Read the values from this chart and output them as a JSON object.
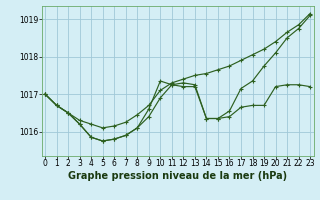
{
  "title": "Graphe pression niveau de la mer (hPa)",
  "background_color": "#d4eef5",
  "grid_color": "#a0c8d8",
  "line_color": "#2d6020",
  "marker_color": "#2d6020",
  "ylim": [
    1015.35,
    1019.35
  ],
  "yticks": [
    1016,
    1017,
    1018,
    1019
  ],
  "xlim": [
    -0.3,
    23.3
  ],
  "xticks": [
    0,
    1,
    2,
    3,
    4,
    5,
    6,
    7,
    8,
    9,
    10,
    11,
    12,
    13,
    14,
    15,
    16,
    17,
    18,
    19,
    20,
    21,
    22,
    23
  ],
  "series1_x": [
    0,
    1,
    2,
    3,
    4,
    5,
    6,
    7,
    8,
    9,
    10,
    11,
    12,
    13,
    14,
    15,
    16,
    17,
    18,
    19,
    20,
    21,
    22,
    23
  ],
  "series1_y": [
    1017.0,
    1016.7,
    1016.5,
    1016.2,
    1015.85,
    1015.75,
    1015.8,
    1015.9,
    1016.1,
    1016.4,
    1016.9,
    1017.25,
    1017.2,
    1017.2,
    1016.35,
    1016.35,
    1016.4,
    1016.65,
    1016.7,
    1016.7,
    1017.2,
    1017.25,
    1017.25,
    1017.2
  ],
  "series2_x": [
    0,
    1,
    2,
    3,
    4,
    5,
    6,
    7,
    8,
    9,
    10,
    11,
    12,
    13,
    14,
    15,
    16,
    17,
    18,
    19,
    20,
    21,
    22,
    23
  ],
  "series2_y": [
    1017.0,
    1016.7,
    1016.5,
    1016.2,
    1015.85,
    1015.75,
    1015.8,
    1015.9,
    1016.1,
    1016.6,
    1017.35,
    1017.25,
    1017.3,
    1017.25,
    1016.35,
    1016.35,
    1016.55,
    1017.15,
    1017.35,
    1017.75,
    1018.1,
    1018.5,
    1018.75,
    1019.1
  ],
  "series3_x": [
    0,
    1,
    2,
    3,
    4,
    5,
    6,
    7,
    8,
    9,
    10,
    11,
    12,
    13,
    14,
    15,
    16,
    17,
    18,
    19,
    20,
    21,
    22,
    23
  ],
  "series3_y": [
    1017.0,
    1016.7,
    1016.5,
    1016.3,
    1016.2,
    1016.1,
    1016.15,
    1016.25,
    1016.45,
    1016.7,
    1017.1,
    1017.3,
    1017.4,
    1017.5,
    1017.55,
    1017.65,
    1017.75,
    1017.9,
    1018.05,
    1018.2,
    1018.4,
    1018.65,
    1018.85,
    1019.15
  ],
  "tick_fontsize": 5.5,
  "xlabel_fontsize": 7.0
}
